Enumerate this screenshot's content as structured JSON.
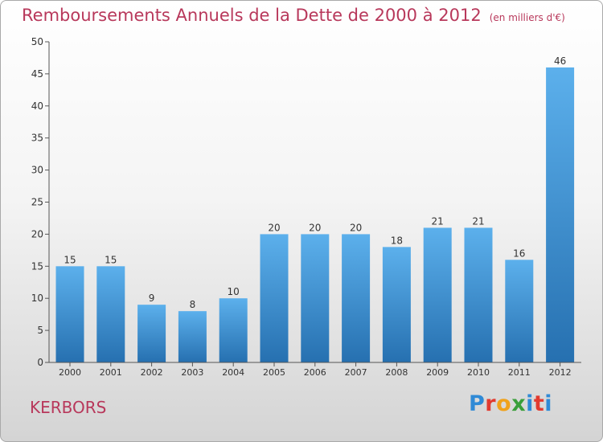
{
  "header": {
    "title": "Remboursements Annuels de la Dette de 2000 à 2012",
    "subtitle": "(en milliers d'€)"
  },
  "footer": {
    "place": "KERBORS",
    "brand": "Proxiti",
    "brand_colors": [
      "#2f8ad6",
      "#e23a2f",
      "#f0a21b",
      "#3a9f3a",
      "#2f8ad6",
      "#e23a2f",
      "#2f8ad6"
    ]
  },
  "colors": {
    "bar_top": "#5cb0ec",
    "bar_bottom": "#2670b0",
    "axis": "#555555",
    "tick_text": "#333333"
  },
  "chart_data": {
    "type": "bar",
    "categories": [
      "2000",
      "2001",
      "2002",
      "2003",
      "2004",
      "2005",
      "2006",
      "2007",
      "2008",
      "2009",
      "2010",
      "2011",
      "2012"
    ],
    "values": [
      15,
      15,
      9,
      8,
      10,
      20,
      20,
      20,
      18,
      21,
      21,
      16,
      46
    ],
    "data_labels": [
      "15",
      "15",
      "9",
      "8",
      "10",
      "20",
      "20",
      "20",
      "18",
      "21",
      "21",
      "16",
      "46"
    ],
    "ylim": [
      0,
      50
    ],
    "yticks": [
      0,
      5,
      10,
      15,
      20,
      25,
      30,
      35,
      40,
      45,
      50
    ],
    "grid": false,
    "legend": "none"
  }
}
